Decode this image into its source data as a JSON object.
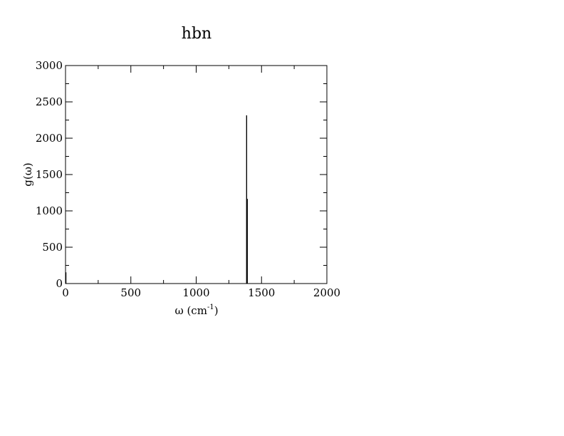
{
  "chart_data": {
    "type": "line",
    "title": "hbn",
    "xlabel": {
      "main": "ω (cm",
      "sup": "-1",
      "close": ")"
    },
    "ylabel": "g(ω)",
    "xlim": [
      0,
      2000
    ],
    "ylim": [
      0,
      3000
    ],
    "x_ticks": [
      0,
      500,
      1000,
      1500,
      2000
    ],
    "y_ticks": [
      0,
      500,
      1000,
      1500,
      2000,
      2500,
      3000
    ],
    "x_tick_labels": [
      "0",
      "500",
      "1000",
      "1500",
      "2000"
    ],
    "y_tick_labels": [
      "0",
      "500",
      "1000",
      "1500",
      "2000",
      "2500",
      "3000"
    ],
    "x_minor_step": 250,
    "y_minor_step": 250,
    "grid": false,
    "series": [
      {
        "color": "#000000",
        "points": [
          [
            0,
            0
          ],
          [
            0,
            150
          ],
          [
            4,
            150
          ],
          [
            4,
            0
          ],
          [
            1385,
            0
          ],
          [
            1385,
            2310
          ],
          [
            1387,
            2310
          ],
          [
            1387,
            0
          ],
          [
            1389,
            0
          ],
          [
            1389,
            1160
          ],
          [
            1392,
            1160
          ],
          [
            1392,
            0
          ],
          [
            2000,
            0
          ]
        ]
      }
    ]
  }
}
